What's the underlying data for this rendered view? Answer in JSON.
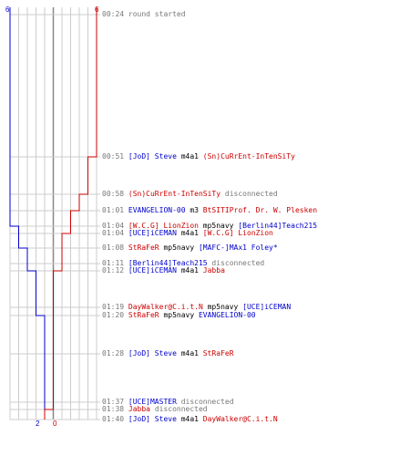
{
  "colors": {
    "team_blue": "#0000cc",
    "team_red": "#cc0000",
    "grid": "#cccccc",
    "text_gray": "#777777"
  },
  "header": {
    "blue_start_count": "6",
    "red_start_count": "6"
  },
  "footer": {
    "blue_end_count": "2",
    "red_end_count": "0"
  },
  "events": [
    {
      "time": "00:24",
      "parts": [
        {
          "text": "round started",
          "color": "gray"
        }
      ]
    },
    {
      "time": "00:51",
      "parts": [
        {
          "text": "[JoD] Steve",
          "color": "blue"
        },
        {
          "text": " m4a1 ",
          "color": "black"
        },
        {
          "text": "(Sn)CuRrEnt-InTenSiTy",
          "color": "red"
        }
      ]
    },
    {
      "time": "00:58",
      "parts": [
        {
          "text": "(Sn)CuRrEnt-InTenSiTy",
          "color": "red"
        },
        {
          "text": " disconnected",
          "color": "gray"
        }
      ]
    },
    {
      "time": "01:01",
      "parts": [
        {
          "text": "EVANGELION-00",
          "color": "blue"
        },
        {
          "text": " m3 ",
          "color": "black"
        },
        {
          "text": "BtSITIProf. Dr. W. Plesken",
          "color": "red"
        }
      ]
    },
    {
      "time": "01:04",
      "parts": [
        {
          "text": "[W.C.G] LionZion",
          "color": "red"
        },
        {
          "text": " mp5navy ",
          "color": "black"
        },
        {
          "text": "[Berlin44]Teach215",
          "color": "blue"
        }
      ]
    },
    {
      "time": "01:04",
      "parts": [
        {
          "text": "[UCE]iCEMAN",
          "color": "blue"
        },
        {
          "text": " m4a1 ",
          "color": "black"
        },
        {
          "text": "[W.C.G] LionZion",
          "color": "red"
        }
      ]
    },
    {
      "time": "01:08",
      "parts": [
        {
          "text": "StRaFeR",
          "color": "red"
        },
        {
          "text": " mp5navy ",
          "color": "black"
        },
        {
          "text": "[MAFC-]MAx1 Foley*",
          "color": "blue"
        }
      ]
    },
    {
      "time": "01:11",
      "parts": [
        {
          "text": "[Berlin44]Teach215",
          "color": "blue"
        },
        {
          "text": " disconnected",
          "color": "gray"
        }
      ]
    },
    {
      "time": "01:12",
      "parts": [
        {
          "text": "[UCE]iCEMAN",
          "color": "blue"
        },
        {
          "text": " m4a1 ",
          "color": "black"
        },
        {
          "text": "Jabba",
          "color": "red"
        }
      ]
    },
    {
      "time": "01:19",
      "parts": [
        {
          "text": "DayWalker@C.i.t.N",
          "color": "red"
        },
        {
          "text": " mp5navy ",
          "color": "black"
        },
        {
          "text": "[UCE]iCEMAN",
          "color": "blue"
        }
      ]
    },
    {
      "time": "01:20",
      "parts": [
        {
          "text": "StRaFeR",
          "color": "red"
        },
        {
          "text": " mp5navy ",
          "color": "black"
        },
        {
          "text": "EVANGELION-00",
          "color": "blue"
        }
      ]
    },
    {
      "time": "01:28",
      "parts": [
        {
          "text": "[JoD] Steve",
          "color": "blue"
        },
        {
          "text": " m4a1 ",
          "color": "black"
        },
        {
          "text": "StRaFeR",
          "color": "red"
        }
      ]
    },
    {
      "time": "01:37",
      "parts": [
        {
          "text": "[UCE]MASTER",
          "color": "blue"
        },
        {
          "text": " disconnected",
          "color": "gray"
        }
      ]
    },
    {
      "time": "01:38",
      "parts": [
        {
          "text": "Jabba",
          "color": "red"
        },
        {
          "text": " disconnected",
          "color": "gray"
        }
      ]
    },
    {
      "time": "01:40",
      "parts": [
        {
          "text": "[JoD] Steve",
          "color": "blue"
        },
        {
          "text": " m4a1 ",
          "color": "black"
        },
        {
          "text": "DayWalker@C.i.t.N",
          "color": "red"
        }
      ]
    }
  ],
  "team_steps": {
    "blue": [
      6,
      6,
      6,
      6,
      6,
      5,
      5,
      4,
      4,
      3,
      3,
      2,
      2,
      2,
      2,
      2
    ],
    "red": [
      6,
      6,
      5,
      4,
      3,
      3,
      2,
      2,
      2,
      1,
      1,
      1,
      1,
      1,
      0,
      0
    ]
  }
}
